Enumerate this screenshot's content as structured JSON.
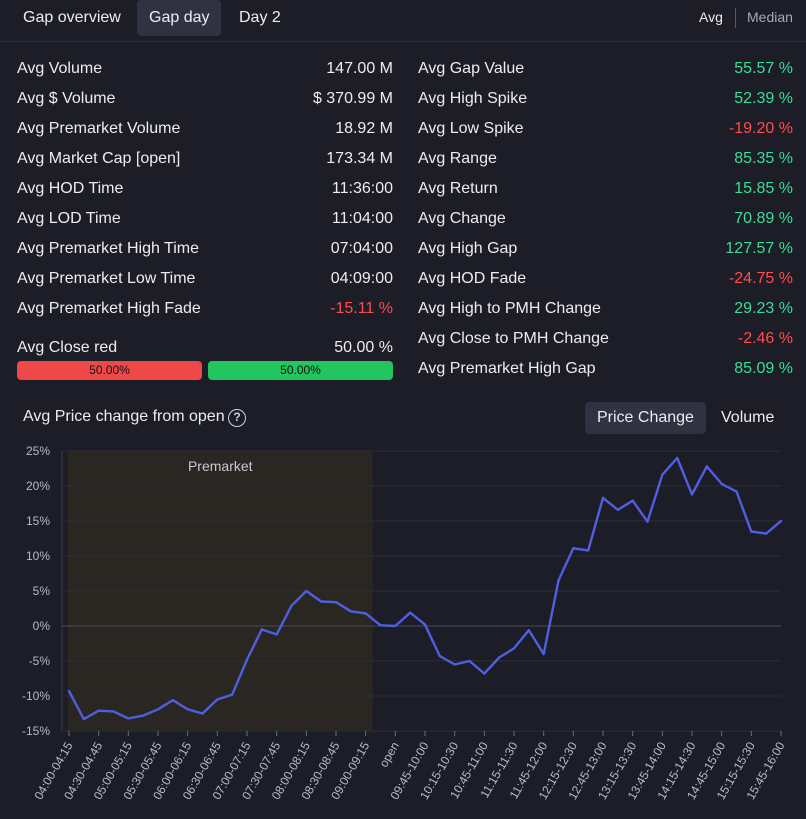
{
  "tabs": [
    {
      "label": "Gap overview",
      "active": false
    },
    {
      "label": "Gap day",
      "active": true
    },
    {
      "label": "Day 2",
      "active": false
    }
  ],
  "agg_toggle": {
    "avg": "Avg",
    "median": "Median",
    "selected": "Avg"
  },
  "left_stats": [
    {
      "label": "Avg Volume",
      "value": "147.00 M",
      "tone": "neutral"
    },
    {
      "label": "Avg $ Volume",
      "value": "$ 370.99 M",
      "tone": "neutral"
    },
    {
      "label": "Avg Premarket Volume",
      "value": "18.92 M",
      "tone": "neutral"
    },
    {
      "label": "Avg Market Cap [open]",
      "value": "173.34 M",
      "tone": "neutral"
    },
    {
      "label": "Avg HOD Time",
      "value": "11:36:00",
      "tone": "neutral"
    },
    {
      "label": "Avg LOD Time",
      "value": "11:04:00",
      "tone": "neutral"
    },
    {
      "label": "Avg Premarket High Time",
      "value": "07:04:00",
      "tone": "neutral"
    },
    {
      "label": "Avg Premarket Low Time",
      "value": "04:09:00",
      "tone": "neutral"
    },
    {
      "label": "Avg Premarket High Fade",
      "value": "-15.11 %",
      "tone": "negative"
    }
  ],
  "close_red": {
    "label": "Avg Close red",
    "value": "50.00 %",
    "red_label": "50.00%",
    "green_label": "50.00%",
    "red_fraction": 0.5,
    "red_color": "#f04848",
    "green_color": "#22c55e"
  },
  "right_stats": [
    {
      "label": "Avg Gap Value",
      "value": "55.57 %",
      "tone": "positive"
    },
    {
      "label": "Avg High Spike",
      "value": "52.39 %",
      "tone": "positive"
    },
    {
      "label": "Avg Low Spike",
      "value": "-19.20 %",
      "tone": "negative"
    },
    {
      "label": "Avg Range",
      "value": "85.35 %",
      "tone": "positive"
    },
    {
      "label": "Avg Return",
      "value": "15.85 %",
      "tone": "positive"
    },
    {
      "label": "Avg Change",
      "value": "70.89 %",
      "tone": "positive"
    },
    {
      "label": "Avg High Gap",
      "value": "127.57 %",
      "tone": "positive"
    },
    {
      "label": "Avg HOD Fade",
      "value": "-24.75 %",
      "tone": "negative"
    },
    {
      "label": "Avg High to PMH Change",
      "value": "29.23 %",
      "tone": "positive"
    },
    {
      "label": "Avg Close to PMH Change",
      "value": "-2.46 %",
      "tone": "negative"
    },
    {
      "label": "Avg Premarket High Gap",
      "value": "85.09 %",
      "tone": "positive"
    }
  ],
  "chart_header": {
    "title": "Avg Price change from open",
    "help_icon": "question-circle-icon",
    "modes": [
      {
        "label": "Price Change",
        "active": true
      },
      {
        "label": "Volume",
        "active": false
      }
    ]
  },
  "colors": {
    "positive": "#3ddc97",
    "negative": "#ff4d4d",
    "line": "#4f5fe0",
    "premarket_shade": "#2a2621"
  },
  "chart_data": {
    "type": "line",
    "title": "Avg Price change from open",
    "region_label": "Premarket",
    "region_start_index": 0,
    "region_end_index": 21,
    "ylim": [
      -15,
      25
    ],
    "yticks": [
      25,
      20,
      15,
      10,
      5,
      0,
      -5,
      -10,
      -15
    ],
    "ytick_labels": [
      "25%",
      "20%",
      "15%",
      "10%",
      "5%",
      "0%",
      "-5%",
      "-10%",
      "-15%"
    ],
    "grid": true,
    "x_labels": [
      "04:00-04:15",
      "04:30-04:45",
      "05:00-05:15",
      "05:30-05:45",
      "06:00-06:15",
      "06:30-06:45",
      "07:00-07:15",
      "07:30-07:45",
      "08:00-08:15",
      "08:30-08:45",
      "09:00-09:15",
      "open",
      "09:45-10:00",
      "10:15-10:30",
      "10:45-11:00",
      "11:15-11:30",
      "11:45-12:00",
      "12:15-12:30",
      "12:45-13:00",
      "13:15-13:30",
      "13:45-14:00",
      "14:15-14:30",
      "14:45-15:00",
      "15:15-15:30",
      "15:45-16:00"
    ],
    "series": [
      {
        "values": [
          -9.3,
          -13.3,
          -12.1,
          -12.2,
          -13.2,
          -12.8,
          -11.9,
          -10.6,
          -11.9,
          -12.5,
          -10.5,
          -9.8,
          -4.8,
          -0.5,
          -1.2,
          2.9,
          5.0,
          3.5,
          3.4,
          2.1,
          1.8,
          0.1,
          0.0,
          1.9,
          0.2,
          -4.3,
          -5.5,
          -5.0,
          -6.8,
          -4.5,
          -3.2,
          -0.6,
          -4.0,
          6.5,
          11.1,
          10.8,
          18.3,
          16.6,
          17.9,
          14.9,
          21.6,
          24.0,
          18.8,
          22.8,
          20.3,
          19.2,
          13.5,
          13.2,
          15.0
        ]
      }
    ]
  }
}
